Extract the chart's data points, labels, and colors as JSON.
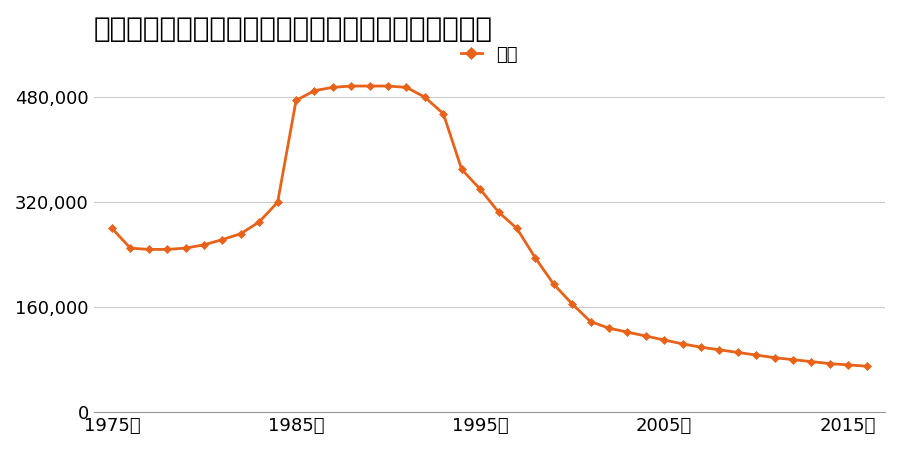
{
  "title": "青森県五所川原市字大町２５番１ほか１筆の地価推移",
  "legend_label": "価格",
  "line_color": "#e8621a",
  "marker_color": "#e8621a",
  "background_color": "#ffffff",
  "years": [
    1975,
    1976,
    1977,
    1978,
    1979,
    1980,
    1981,
    1982,
    1983,
    1984,
    1985,
    1986,
    1987,
    1988,
    1989,
    1990,
    1991,
    1992,
    1993,
    1994,
    1995,
    1996,
    1997,
    1998,
    1999,
    2000,
    2001,
    2002,
    2003,
    2004,
    2005,
    2006,
    2007,
    2008,
    2009,
    2010,
    2011,
    2012,
    2013,
    2014,
    2015,
    2016
  ],
  "values": [
    280000,
    250000,
    248000,
    248000,
    250000,
    255000,
    263000,
    272000,
    290000,
    320000,
    475000,
    490000,
    495000,
    497000,
    497000,
    497000,
    495000,
    480000,
    455000,
    370000,
    340000,
    305000,
    280000,
    235000,
    195000,
    165000,
    138000,
    128000,
    122000,
    116000,
    110000,
    104000,
    99000,
    95000,
    91000,
    87000,
    83000,
    80000,
    77000,
    74000,
    72000,
    70000
  ],
  "yticks": [
    0,
    160000,
    320000,
    480000
  ],
  "ytick_labels": [
    "0",
    "160,000",
    "320,000",
    "480,000"
  ],
  "xtick_years": [
    1975,
    1985,
    1995,
    2005,
    2015
  ],
  "xtick_labels": [
    "1975年",
    "1985年",
    "1995年",
    "2005年",
    "2015年"
  ],
  "ylim": [
    0,
    540000
  ],
  "xlim": [
    1974,
    2017
  ],
  "grid_color": "#cccccc",
  "title_fontsize": 20,
  "legend_fontsize": 13,
  "tick_fontsize": 13,
  "marker_size": 4,
  "line_width": 2.0
}
